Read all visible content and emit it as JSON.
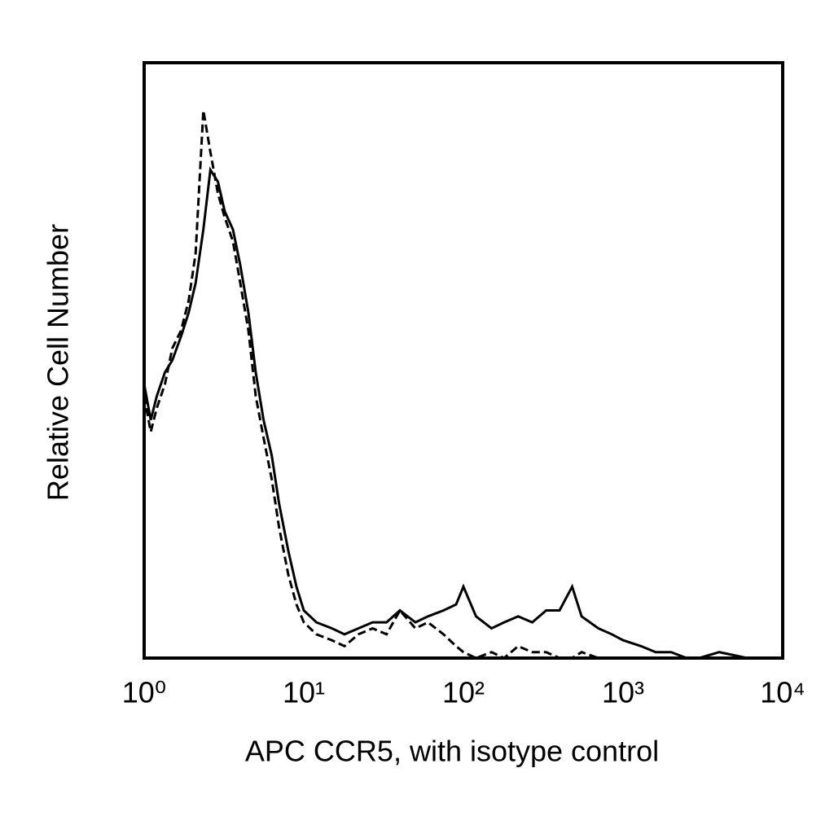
{
  "chart_data": {
    "type": "line",
    "x_label": "APC CCR5, with isotype control",
    "y_label": "Relative Cell Number",
    "x": [
      1,
      1.1,
      1.2,
      1.35,
      1.5,
      1.7,
      1.9,
      2.1,
      2.35,
      2.6,
      2.9,
      3.2,
      3.6,
      4,
      4.5,
      5,
      5.6,
      6.3,
      7,
      8,
      9,
      10,
      12,
      15,
      18,
      22,
      27,
      33,
      40,
      50,
      60,
      75,
      90,
      100,
      120,
      150,
      180,
      220,
      270,
      330,
      400,
      480,
      550,
      700,
      850,
      1000,
      1300,
      1600,
      2000,
      2500,
      3000,
      4000,
      6000,
      10000
    ],
    "series": [
      {
        "color": "#000000",
        "dashed": false,
        "values": [
          46,
          40,
          44,
          48,
          50,
          54,
          58,
          63,
          72,
          82,
          80,
          75,
          72,
          66,
          58,
          48,
          40,
          34,
          26,
          18,
          12,
          8,
          6,
          5,
          4,
          5,
          6,
          6,
          8,
          6,
          7,
          8,
          9,
          12,
          7,
          5,
          6,
          7,
          6,
          8,
          8,
          12,
          7,
          5,
          4,
          3,
          2,
          1,
          1,
          0,
          0,
          1,
          0,
          0
        ]
      },
      {
        "color": "#000000",
        "dashed": true,
        "values": [
          44,
          38,
          42,
          46,
          52,
          55,
          60,
          68,
          92,
          85,
          78,
          74,
          70,
          63,
          55,
          44,
          37,
          30,
          22,
          14,
          9,
          6,
          4,
          3,
          2,
          4,
          5,
          4,
          8,
          5,
          6,
          4,
          2,
          1,
          0,
          1,
          0,
          2,
          1,
          1,
          0,
          0,
          1,
          0,
          0,
          0,
          0,
          0,
          0,
          0,
          0,
          0,
          0,
          0
        ]
      }
    ],
    "xscale": "log",
    "xlim": [
      1,
      10000
    ],
    "xticks": [
      {
        "value": 1,
        "label": "10⁰"
      },
      {
        "value": 10,
        "label": "10¹"
      },
      {
        "value": 100,
        "label": "10²"
      },
      {
        "value": 1000,
        "label": "10³"
      },
      {
        "value": 10000,
        "label": "10⁴"
      }
    ],
    "ylim": [
      0,
      100
    ],
    "grid": false
  }
}
